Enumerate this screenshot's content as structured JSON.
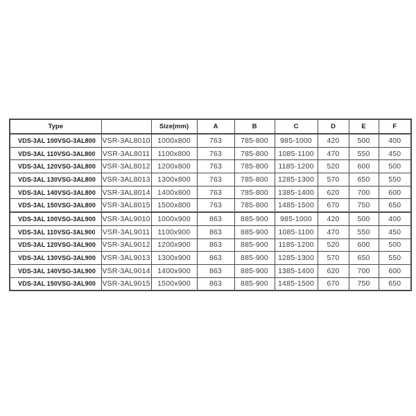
{
  "table": {
    "headers": {
      "type": "Type",
      "model": "",
      "size": "Size(mm)",
      "dims": [
        "A",
        "B",
        "C",
        "D",
        "E",
        "F"
      ]
    },
    "rows": [
      {
        "vds": "VDS-3AL 100",
        "vsg": "VSG-3AL800",
        "vsr": "VSR-3AL8010",
        "size": "1000x800",
        "a": "763",
        "b": "785-800",
        "c": "985-1000",
        "d": "420",
        "e": "500",
        "f": "400"
      },
      {
        "vds": "VDS-3AL 110",
        "vsg": "VSG-3AL800",
        "vsr": "VSR-3AL8011",
        "size": "1100x800",
        "a": "763",
        "b": "785-800",
        "c": "1085-1100",
        "d": "470",
        "e": "550",
        "f": "450"
      },
      {
        "vds": "VDS-3AL 120",
        "vsg": "VSG-3AL800",
        "vsr": "VSR-3AL8012",
        "size": "1200x800",
        "a": "763",
        "b": "785-800",
        "c": "1185-1200",
        "d": "520",
        "e": "600",
        "f": "500"
      },
      {
        "vds": "VDS-3AL 130",
        "vsg": "VSG-3AL800",
        "vsr": "VSR-3AL8013",
        "size": "1300x800",
        "a": "763",
        "b": "785-800",
        "c": "1285-1300",
        "d": "570",
        "e": "650",
        "f": "550"
      },
      {
        "vds": "VDS-3AL 140",
        "vsg": "VSG-3AL800",
        "vsr": "VSR-3AL8014",
        "size": "1400x800",
        "a": "763",
        "b": "785-800",
        "c": "1385-1400",
        "d": "620",
        "e": "700",
        "f": "600"
      },
      {
        "vds": "VDS-3AL 150",
        "vsg": "VSG-3AL800",
        "vsr": "VSR-3AL8015",
        "size": "1500x800",
        "a": "763",
        "b": "785-800",
        "c": "1485-1500",
        "d": "670",
        "e": "750",
        "f": "650"
      },
      {
        "vds": "VDS-3AL 100",
        "vsg": "VSG-3AL900",
        "vsr": "VSR-3AL9010",
        "size": "1000x900",
        "a": "863",
        "b": "885-900",
        "c": "985-1000",
        "d": "420",
        "e": "500",
        "f": "400"
      },
      {
        "vds": "VDS-3AL 110",
        "vsg": "VSG-3AL900",
        "vsr": "VSR-3AL9011",
        "size": "1100x900",
        "a": "863",
        "b": "885-900",
        "c": "1085-1100",
        "d": "470",
        "e": "550",
        "f": "450"
      },
      {
        "vds": "VDS-3AL 120",
        "vsg": "VSG-3AL900",
        "vsr": "VSR-3AL9012",
        "size": "1200x900",
        "a": "863",
        "b": "885-900",
        "c": "1185-1200",
        "d": "520",
        "e": "600",
        "f": "500"
      },
      {
        "vds": "VDS-3AL 130",
        "vsg": "VSG-3AL900",
        "vsr": "VSR-3AL9013",
        "size": "1300x900",
        "a": "863",
        "b": "885-900",
        "c": "1285-1300",
        "d": "570",
        "e": "650",
        "f": "550"
      },
      {
        "vds": "VDS-3AL 140",
        "vsg": "VSG-3AL900",
        "vsr": "VSR-3AL9014",
        "size": "1400x900",
        "a": "863",
        "b": "885-900",
        "c": "1385-1400",
        "d": "620",
        "e": "700",
        "f": "600"
      },
      {
        "vds": "VDS-3AL 150",
        "vsg": "VSG-3AL900",
        "vsr": "VSR-3AL9015",
        "size": "1500x900",
        "a": "863",
        "b": "885-900",
        "c": "1485-1500",
        "d": "670",
        "e": "750",
        "f": "650"
      }
    ],
    "group_start_row_index": 6,
    "colors": {
      "border": "#4a4a4a",
      "header_text": "#1a1a1a",
      "cell_text": "#3c3c3c",
      "background": "#ffffff"
    }
  }
}
